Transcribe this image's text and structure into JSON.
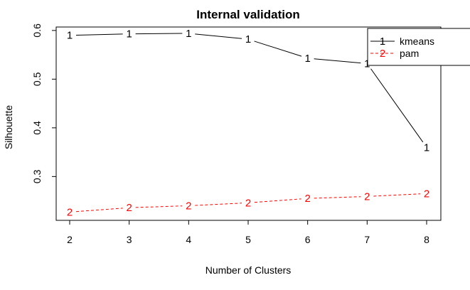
{
  "chart_data": {
    "type": "line",
    "title": "Internal validation",
    "xlabel": "Number of Clusters",
    "ylabel": "Silhouette",
    "x": [
      2,
      3,
      4,
      5,
      6,
      7,
      8
    ],
    "xlim": [
      2,
      8
    ],
    "ylim": [
      0.21,
      0.61
    ],
    "yticks": [
      0.3,
      0.4,
      0.5,
      0.6
    ],
    "yticks_labels": [
      "0.3",
      "0.4",
      "0.5",
      "0.6"
    ],
    "xticks": [
      2,
      3,
      4,
      5,
      6,
      7,
      8
    ],
    "xticks_labels": [
      "2",
      "3",
      "4",
      "5",
      "6",
      "7",
      "8"
    ],
    "legend_position": "top-right",
    "series": [
      {
        "name": "kmeans",
        "marker": "1",
        "color": "#000000",
        "dash": "solid",
        "values": [
          0.59,
          0.593,
          0.594,
          0.582,
          0.543,
          0.532,
          0.36
        ]
      },
      {
        "name": "pam",
        "marker": "2",
        "color": "#ff0000",
        "dash": "dashed",
        "values": [
          0.227,
          0.236,
          0.24,
          0.246,
          0.255,
          0.259,
          0.265
        ]
      }
    ]
  }
}
